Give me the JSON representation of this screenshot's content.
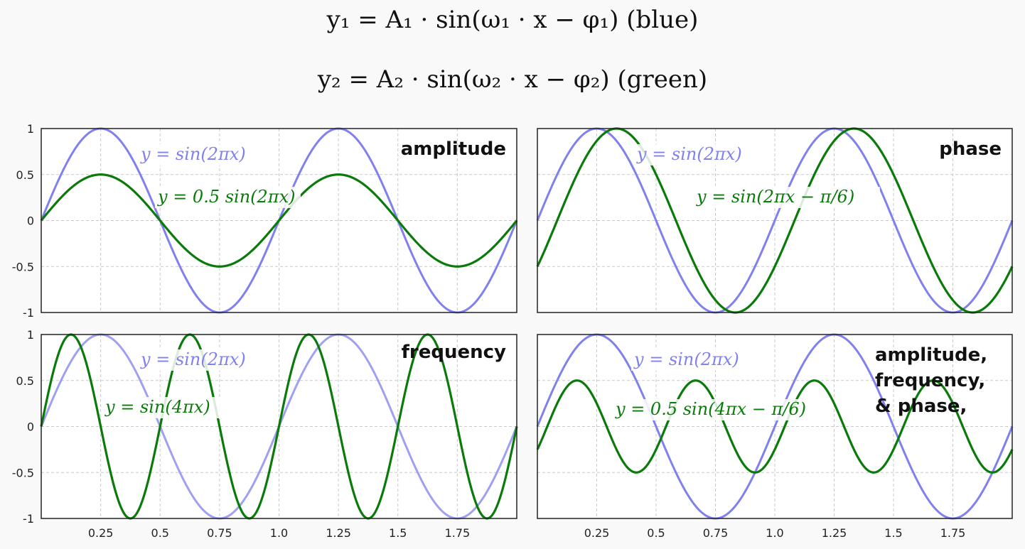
{
  "formulas": {
    "line1": "y₁ = A₁ · sin(ω₁ · x − φ₁) (blue)",
    "line2": "y₂ = A₂ · sin(ω₂ · x − φ₂) (green)"
  },
  "colors": {
    "blue": "#8080ee",
    "green": "#0a7a0a",
    "grid": "#c8c8c8",
    "frame": "#222222"
  },
  "chart_data": [
    {
      "type": "line",
      "panel_label": "amplitude",
      "xlim": [
        0,
        2
      ],
      "ylim": [
        -1,
        1
      ],
      "x_ticks": [
        "0.25",
        "0.5",
        "0.75",
        "1.0",
        "1.25",
        "1.5",
        "1.75"
      ],
      "y_ticks": [
        "1",
        "0.5",
        "0",
        "-0.5",
        "-1"
      ],
      "grid": true,
      "series": [
        {
          "name": "y = sin(2πx)",
          "color": "blue",
          "amplitude": 1,
          "freq": 2,
          "phase": 0
        },
        {
          "name": "y = 0.5 sin(2πx)",
          "color": "green",
          "amplitude": 0.5,
          "freq": 2,
          "phase": 0
        }
      ]
    },
    {
      "type": "line",
      "panel_label": "phase",
      "xlim": [
        0,
        2
      ],
      "ylim": [
        -1,
        1
      ],
      "x_ticks": [],
      "y_ticks": [],
      "grid": true,
      "series": [
        {
          "name": "y = sin(2πx)",
          "color": "blue",
          "amplitude": 1,
          "freq": 2,
          "phase": 0
        },
        {
          "name": "y = sin(2πx − π/6)",
          "color": "green",
          "amplitude": 1,
          "freq": 2,
          "phase": 0.5236
        }
      ]
    },
    {
      "type": "line",
      "panel_label": "frequency",
      "xlim": [
        0,
        2
      ],
      "ylim": [
        -1,
        1
      ],
      "x_ticks": [
        "0.25",
        "0.5",
        "0.75",
        "1.0",
        "1.25",
        "1.5",
        "1.75"
      ],
      "y_ticks": [
        "1",
        "0.5",
        "0",
        "-0.5",
        "-1"
      ],
      "grid": true,
      "series": [
        {
          "name": "y = sin(2πx)",
          "color": "blue",
          "amplitude": 1,
          "freq": 2,
          "phase": 0
        },
        {
          "name": "y = sin(4πx)",
          "color": "green",
          "amplitude": 1,
          "freq": 4,
          "phase": 0
        }
      ]
    },
    {
      "type": "line",
      "panel_label": "amplitude,\nfrequency,\n& phase,",
      "xlim": [
        0,
        2
      ],
      "ylim": [
        -1,
        1
      ],
      "x_ticks": [
        "0.25",
        "0.5",
        "0.75",
        "1.0",
        "1.25",
        "1.5",
        "1.75"
      ],
      "y_ticks": [],
      "grid": true,
      "series": [
        {
          "name": "y = sin(2πx)",
          "color": "blue",
          "amplitude": 1,
          "freq": 2,
          "phase": 0
        },
        {
          "name": "y = 0.5 sin(4πx − π/6)",
          "color": "green",
          "amplitude": 0.5,
          "freq": 4,
          "phase": 0.5236
        }
      ]
    }
  ]
}
